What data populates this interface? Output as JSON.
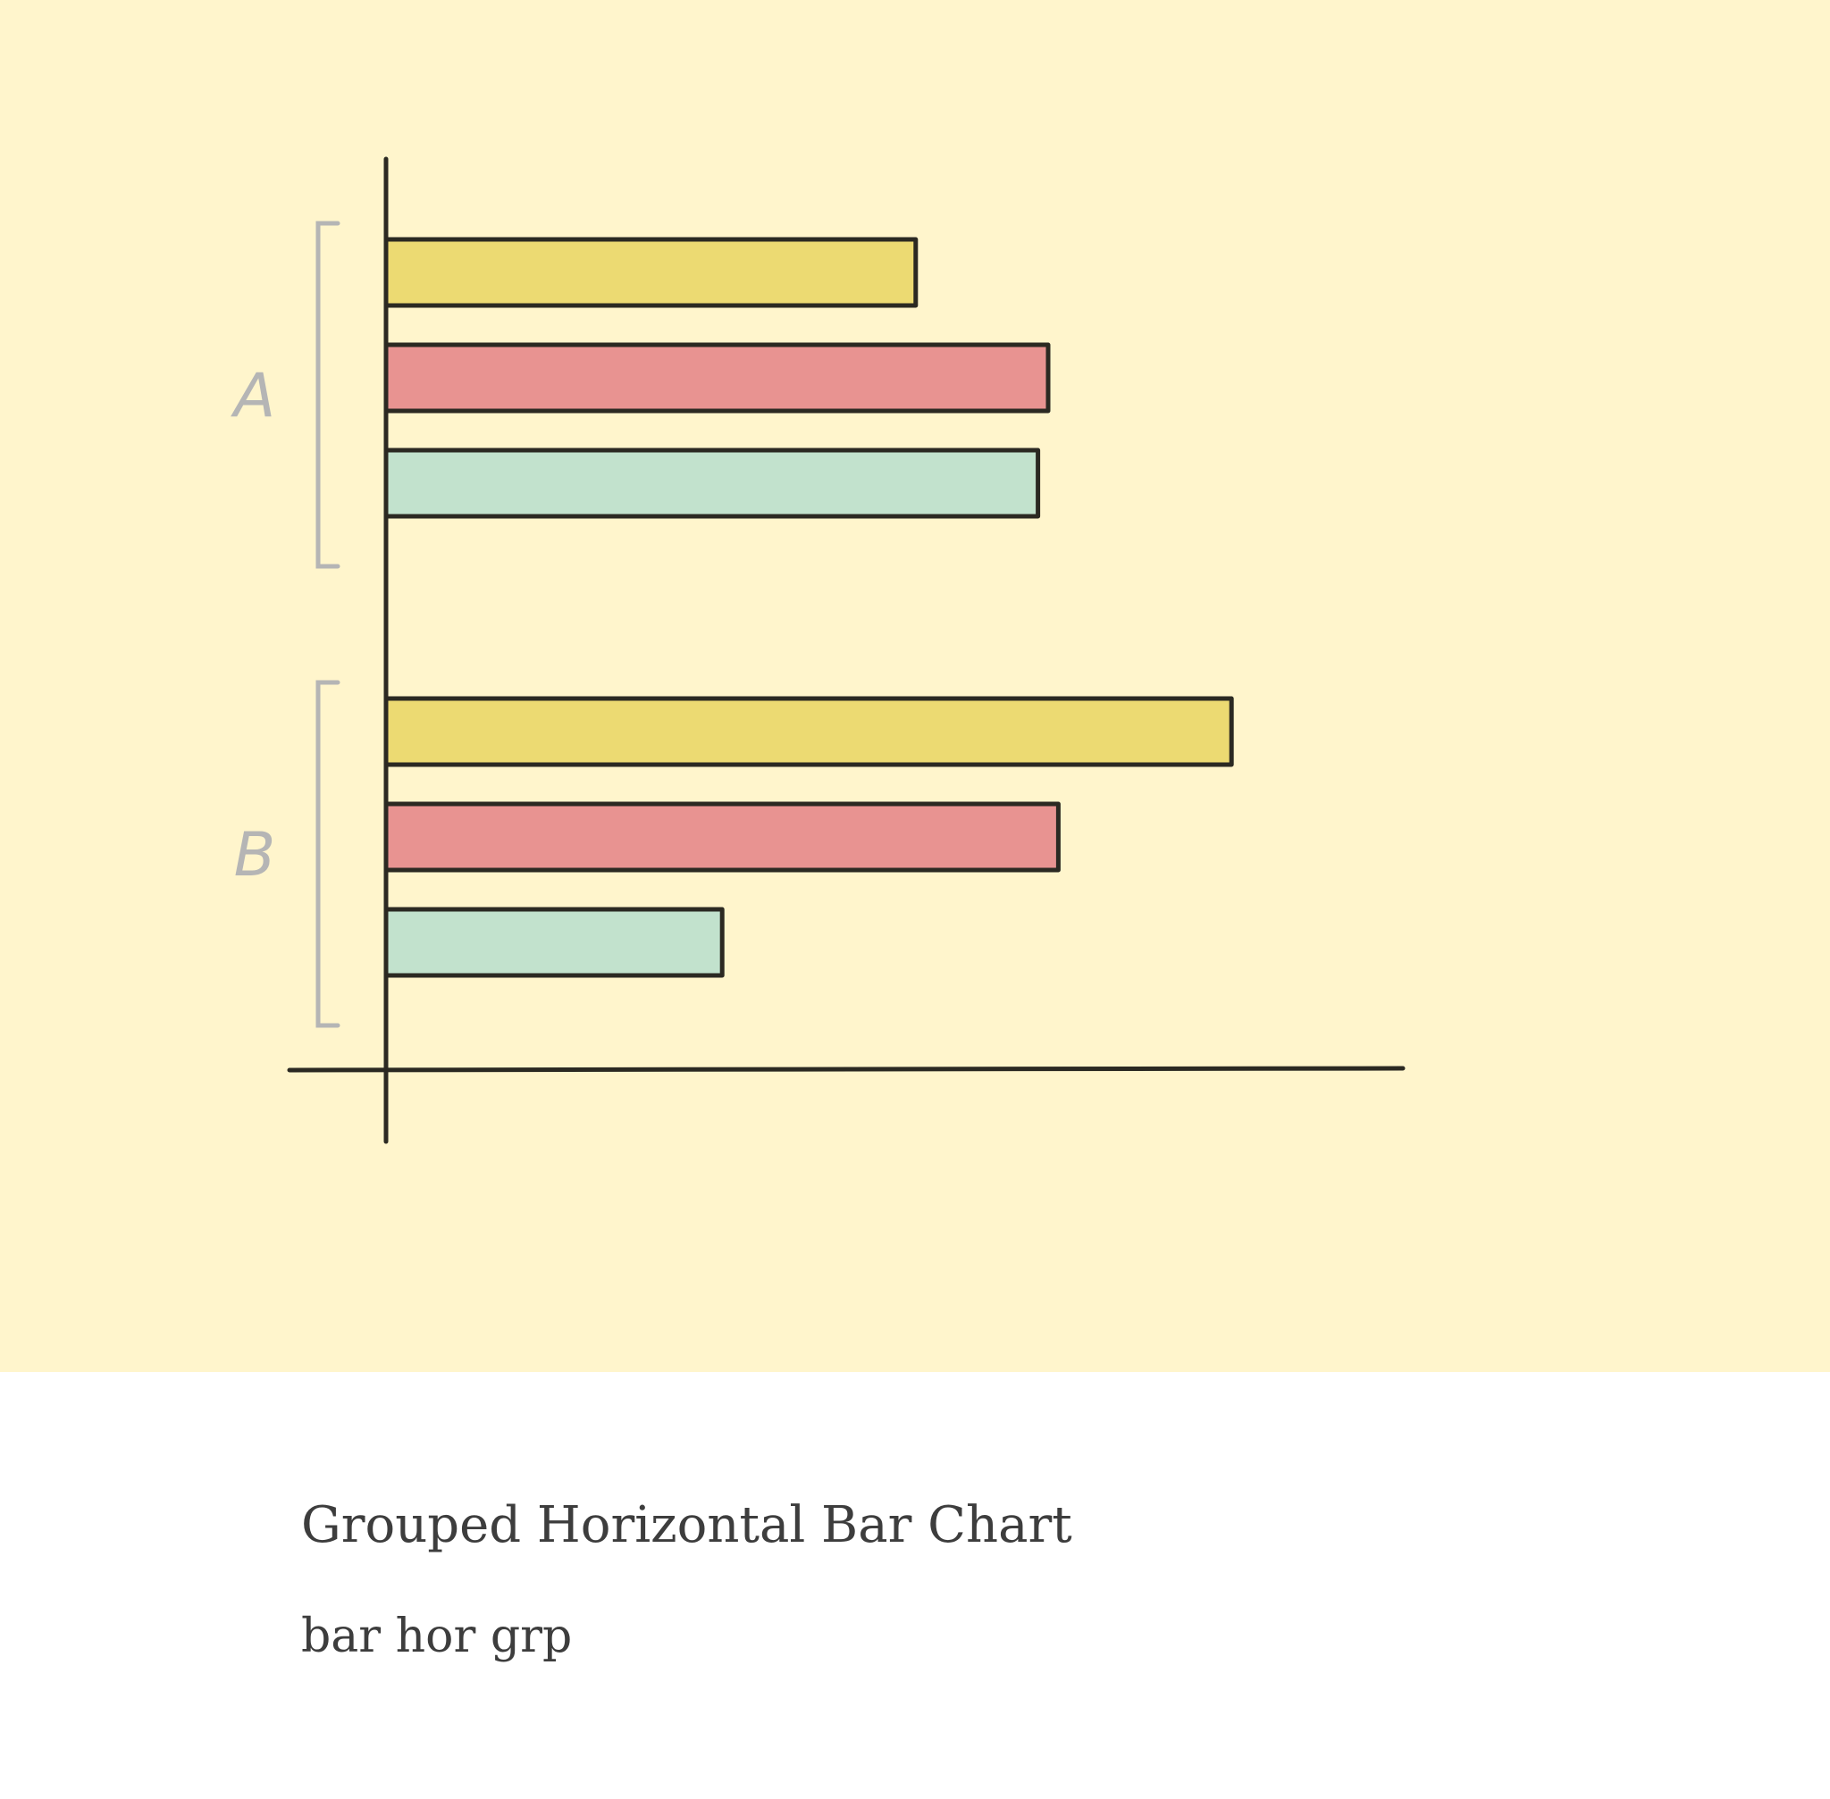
{
  "caption": {
    "title": "Grouped Horizontal Bar Chart",
    "subtitle": "bar hor grp"
  },
  "chart_data": {
    "type": "bar",
    "orientation": "horizontal",
    "categories": [
      "A",
      "B"
    ],
    "series": [
      {
        "values": [
          52,
          83
        ],
        "color": "#ecda72"
      },
      {
        "values": [
          65,
          66
        ],
        "color": "#e89391"
      },
      {
        "values": [
          64,
          33
        ],
        "color": "#c2e2cd"
      }
    ],
    "xlim": [
      0,
      100
    ],
    "grid": false,
    "legend": "none",
    "title": "",
    "xlabel": "",
    "ylabel": ""
  }
}
